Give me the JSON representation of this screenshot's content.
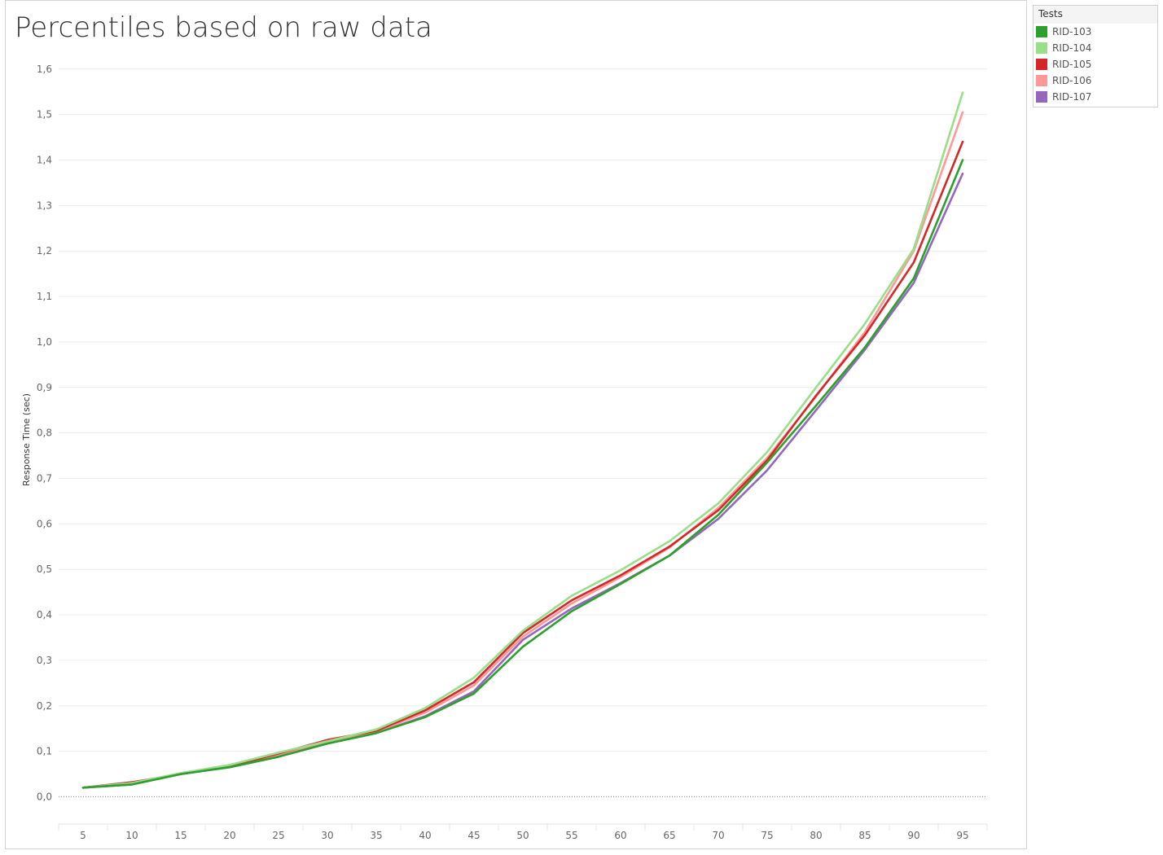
{
  "chart_data": {
    "type": "line",
    "title": "Percentiles based on raw data",
    "xlabel": "",
    "ylabel": "Response Time (sec)",
    "x": [
      5,
      10,
      15,
      20,
      25,
      30,
      35,
      40,
      45,
      50,
      55,
      60,
      65,
      70,
      75,
      80,
      85,
      90,
      95
    ],
    "x_tick_labels": [
      "5",
      "10",
      "15",
      "20",
      "25",
      "30",
      "35",
      "40",
      "45",
      "50",
      "55",
      "60",
      "65",
      "70",
      "75",
      "80",
      "85",
      "90",
      "95"
    ],
    "y_tick_values": [
      0.0,
      0.1,
      0.2,
      0.3,
      0.4,
      0.5,
      0.6,
      0.7,
      0.8,
      0.9,
      1.0,
      1.1,
      1.2,
      1.3,
      1.4,
      1.5,
      1.6
    ],
    "y_tick_labels": [
      "0,0",
      "0,1",
      "0,2",
      "0,3",
      "0,4",
      "0,5",
      "0,6",
      "0,7",
      "0,8",
      "0,9",
      "1,0",
      "1,1",
      "1,2",
      "1,3",
      "1,4",
      "1,5",
      "1,6"
    ],
    "ylim": [
      -0.06,
      1.63
    ],
    "grid": true,
    "legend_title": "Tests",
    "legend_position": "right-top",
    "series": [
      {
        "name": "RID-107",
        "color": "#9467bd",
        "values": [
          0.02,
          0.027,
          0.05,
          0.065,
          0.088,
          0.117,
          0.14,
          0.177,
          0.232,
          0.345,
          0.414,
          0.47,
          0.53,
          0.611,
          0.718,
          0.85,
          0.983,
          1.13,
          1.37
        ]
      },
      {
        "name": "RID-106",
        "color": "#ff9896",
        "values": [
          0.02,
          0.03,
          0.05,
          0.067,
          0.093,
          0.12,
          0.143,
          0.185,
          0.245,
          0.352,
          0.425,
          0.483,
          0.548,
          0.635,
          0.745,
          0.88,
          1.022,
          1.2,
          1.505
        ]
      },
      {
        "name": "RID-105",
        "color": "#d62728",
        "values": [
          0.02,
          0.032,
          0.05,
          0.067,
          0.095,
          0.125,
          0.145,
          0.19,
          0.252,
          0.36,
          0.432,
          0.487,
          0.55,
          0.63,
          0.74,
          0.882,
          1.015,
          1.175,
          1.44
        ]
      },
      {
        "name": "RID-104",
        "color": "#98df8a",
        "values": [
          0.02,
          0.03,
          0.052,
          0.07,
          0.097,
          0.122,
          0.148,
          0.195,
          0.262,
          0.365,
          0.442,
          0.498,
          0.562,
          0.645,
          0.758,
          0.9,
          1.04,
          1.205,
          1.548
        ]
      },
      {
        "name": "RID-103",
        "color": "#2ca02c",
        "values": [
          0.02,
          0.027,
          0.05,
          0.065,
          0.088,
          0.117,
          0.14,
          0.175,
          0.227,
          0.33,
          0.408,
          0.468,
          0.53,
          0.62,
          0.735,
          0.86,
          0.988,
          1.14,
          1.4
        ]
      }
    ]
  },
  "legend": {
    "title": "Tests",
    "items": [
      {
        "label": "RID-103",
        "color": "#2ca02c"
      },
      {
        "label": "RID-104",
        "color": "#98df8a"
      },
      {
        "label": "RID-105",
        "color": "#d62728"
      },
      {
        "label": "RID-106",
        "color": "#ff9896"
      },
      {
        "label": "RID-107",
        "color": "#9467bd"
      }
    ]
  }
}
